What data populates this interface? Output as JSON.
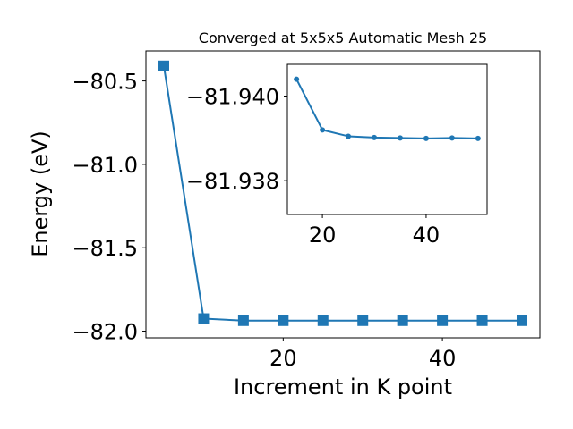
{
  "chart_data": [
    {
      "type": "line",
      "title": "Converged at 5x5x5 Automatic Mesh 25",
      "xlabel": "Increment in K point",
      "ylabel": "Energy (eV)",
      "x": [
        5,
        10,
        15,
        20,
        25,
        30,
        35,
        40,
        45,
        50
      ],
      "series": [
        {
          "values": [
            -80.41,
            -81.925,
            -81.937,
            -81.937,
            -81.937,
            -81.937,
            -81.937,
            -81.937,
            -81.937,
            -81.937
          ]
        }
      ],
      "marker": "square",
      "color": "#1f77b4",
      "xlim": [
        2.75,
        52.25
      ],
      "ylim": [
        -82.04,
        -80.32
      ],
      "xticks": [
        20,
        40
      ],
      "xtick_labels": [
        "20",
        "40"
      ],
      "yticks": [
        -82.0,
        -81.5,
        -81.0,
        -80.5
      ],
      "ytick_labels": [
        "−82.0",
        "−81.5",
        "−81.0",
        "−80.5"
      ],
      "grid": false
    },
    {
      "type": "line",
      "inset": true,
      "x": [
        15,
        20,
        25,
        30,
        35,
        40,
        45,
        50
      ],
      "series": [
        {
          "values": [
            -81.9404,
            -81.9392,
            -81.93905,
            -81.93902,
            -81.93901,
            -81.939,
            -81.93901,
            -81.939
          ]
        }
      ],
      "marker": "circle",
      "color": "#1f77b4",
      "xlim": [
        13.25,
        51.75
      ],
      "ylim": [
        -81.9372,
        -81.94075
      ],
      "xticks": [
        20,
        40
      ],
      "xtick_labels": [
        "20",
        "40"
      ],
      "yticks": [
        -81.94,
        -81.938
      ],
      "ytick_labels": [
        "−81.940",
        "−81.938"
      ],
      "grid": false
    }
  ]
}
